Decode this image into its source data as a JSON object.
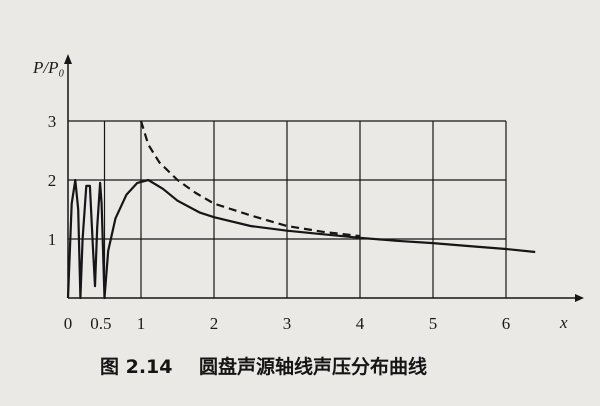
{
  "chart_data": {
    "type": "line",
    "title": "",
    "caption": "图 2.14    圆盘声源轴线声压分布曲线",
    "xlabel": "x",
    "ylabel": "P/P₀",
    "xlim": [
      0,
      6.9
    ],
    "ylim": [
      0,
      3.3
    ],
    "xticks": [
      "0",
      "0.5",
      "1",
      "2",
      "3",
      "4",
      "5",
      "6"
    ],
    "xtick_values": [
      0,
      0.45,
      1,
      2,
      3,
      4,
      5,
      6
    ],
    "yticks": [
      "1",
      "2",
      "3"
    ],
    "ytick_values": [
      1,
      2,
      3
    ],
    "grid": true,
    "series": [
      {
        "style": "solid",
        "x": [
          0,
          0.05,
          0.1,
          0.14,
          0.17,
          0.2,
          0.25,
          0.3,
          0.34,
          0.37,
          0.4,
          0.44,
          0.46,
          0.5,
          0.55,
          0.65,
          0.8,
          0.95,
          1.1,
          1.3,
          1.5,
          1.8,
          2,
          2.5,
          3,
          3.5,
          4,
          4.5,
          5,
          5.5,
          6,
          6.4
        ],
        "y": [
          0,
          1.6,
          2.0,
          1.5,
          0.0,
          1.0,
          1.9,
          1.9,
          0.9,
          0.2,
          1.2,
          1.95,
          1.6,
          0.0,
          0.8,
          1.35,
          1.75,
          1.95,
          2.0,
          1.85,
          1.65,
          1.45,
          1.37,
          1.22,
          1.14,
          1.08,
          1.02,
          0.97,
          0.93,
          0.88,
          0.83,
          0.78
        ]
      },
      {
        "style": "dashed",
        "x": [
          1.0,
          1.1,
          1.25,
          1.5,
          1.75,
          2,
          2.5,
          3,
          3.5,
          4
        ],
        "y": [
          3.0,
          2.6,
          2.3,
          2.0,
          1.78,
          1.6,
          1.4,
          1.22,
          1.12,
          1.05
        ]
      }
    ],
    "colors": {
      "ink": "#161616",
      "paper": "#ebe9e6"
    }
  }
}
